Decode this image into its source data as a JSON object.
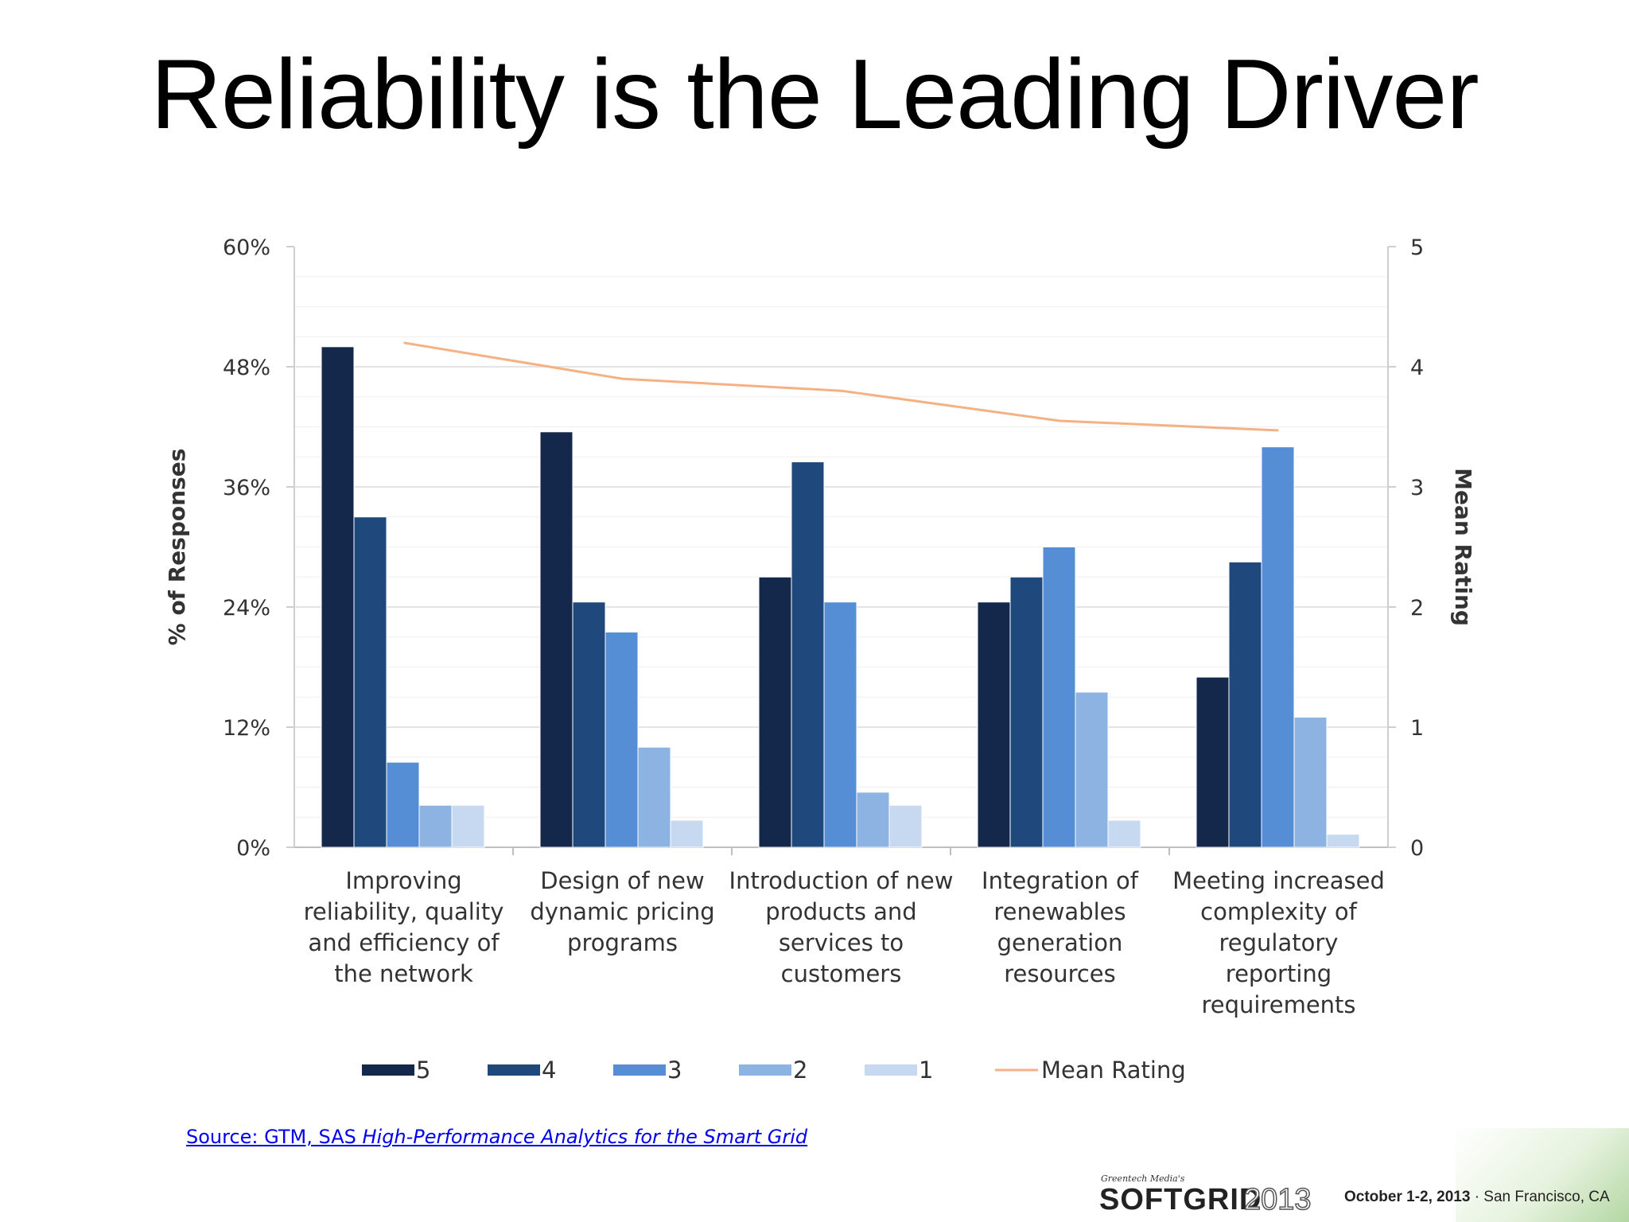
{
  "slide": {
    "title": "Reliability is the Leading Driver"
  },
  "source": {
    "prefix": "Source: GTM, SAS ",
    "italic": "High-Performance Analytics for the Smart Grid"
  },
  "footer": {
    "logo_tagline": "Greentech Media's",
    "logo_main": "SOFTGRID",
    "logo_year": "2013",
    "event_date": "October 1-2, 2013",
    "event_location": " · San Francisco, CA"
  },
  "chart_data": {
    "type": "bar",
    "title": "",
    "categories": [
      [
        "Improving",
        "reliability, quality",
        "and efficiency of",
        "the network"
      ],
      [
        "Design of new",
        "dynamic pricing",
        "programs"
      ],
      [
        "Introduction of new",
        "products and",
        "services to",
        "customers"
      ],
      [
        "Integration of",
        "renewables",
        "generation",
        "resources"
      ],
      [
        "Meeting increased",
        "complexity of",
        "regulatory",
        "reporting",
        "requirements"
      ]
    ],
    "ylabel": "% of Responses",
    "y2label": "Mean Rating",
    "ylim": [
      0,
      60
    ],
    "y2lim": [
      0,
      5
    ],
    "yticks": [
      "0%",
      "12%",
      "24%",
      "36%",
      "48%",
      "60%"
    ],
    "y2ticks": [
      "0",
      "1",
      "2",
      "3",
      "4",
      "5"
    ],
    "grid": true,
    "legend_position": "bottom",
    "series": [
      {
        "name": "5",
        "color": "#13284a",
        "values": [
          50,
          41.5,
          27,
          24.5,
          17
        ]
      },
      {
        "name": "4",
        "color": "#1f497d",
        "values": [
          33,
          24.5,
          38.5,
          27,
          28.5
        ]
      },
      {
        "name": "3",
        "color": "#558ed5",
        "values": [
          8.5,
          21.5,
          24.5,
          30,
          40
        ]
      },
      {
        "name": "2",
        "color": "#8db3e2",
        "values": [
          4.2,
          10,
          5.5,
          15.5,
          13
        ]
      },
      {
        "name": "1",
        "color": "#c6d9f1",
        "values": [
          4.2,
          2.7,
          4.2,
          2.7,
          1.3
        ]
      }
    ],
    "line_series": {
      "name": "Mean Rating",
      "color": "#f4b183",
      "axis": "right",
      "values": [
        4.2,
        3.9,
        3.8,
        3.55,
        3.47
      ]
    }
  }
}
